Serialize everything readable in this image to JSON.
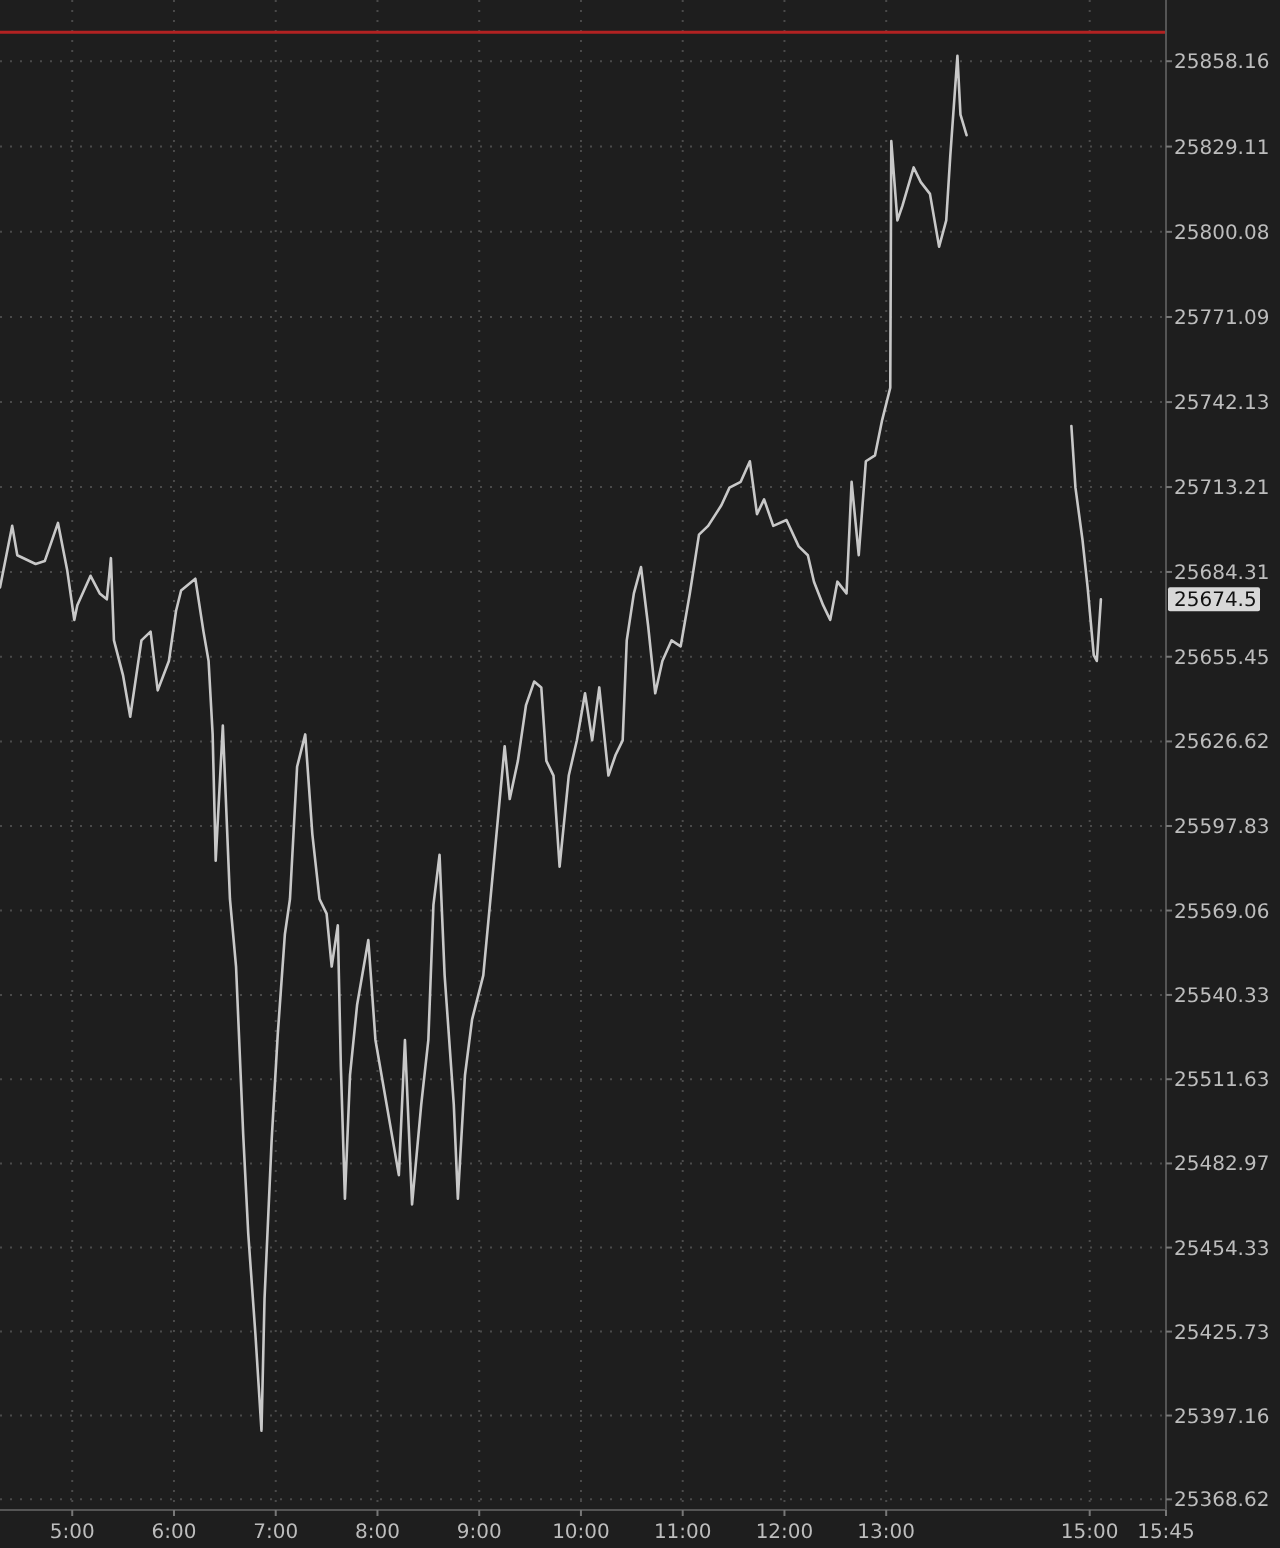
{
  "chart_data": {
    "type": "line",
    "x": [
      4.29,
      4.41,
      4.46,
      4.64,
      4.73,
      4.86,
      4.95,
      5.02,
      5.05,
      5.18,
      5.27,
      5.34,
      5.38,
      5.41,
      5.5,
      5.57,
      5.68,
      5.77,
      5.84,
      5.95,
      6.02,
      6.07,
      6.21,
      6.29,
      6.34,
      6.38,
      6.41,
      6.48,
      6.55,
      6.61,
      6.68,
      6.73,
      6.8,
      6.86,
      6.89,
      6.96,
      7.02,
      7.09,
      7.14,
      7.21,
      7.29,
      7.36,
      7.43,
      7.5,
      7.55,
      7.61,
      7.64,
      7.68,
      7.73,
      7.8,
      7.91,
      7.98,
      8.09,
      8.21,
      8.27,
      8.34,
      8.43,
      8.5,
      8.55,
      8.61,
      8.66,
      8.75,
      8.79,
      8.86,
      8.93,
      9.04,
      9.14,
      9.25,
      9.3,
      9.38,
      9.46,
      9.54,
      9.61,
      9.66,
      9.73,
      9.79,
      9.88,
      9.96,
      10.04,
      10.11,
      10.18,
      10.27,
      10.34,
      10.41,
      10.45,
      10.52,
      10.59,
      10.66,
      10.73,
      10.8,
      10.89,
      10.98,
      11.07,
      11.16,
      11.25,
      11.38,
      11.46,
      11.57,
      11.66,
      11.73,
      11.8,
      11.89,
      12.02,
      12.14,
      12.23,
      12.29,
      12.38,
      12.45,
      12.52,
      12.61,
      12.66,
      12.73,
      12.8,
      12.89,
      12.96,
      13.04,
      13.05,
      13.11,
      13.16,
      13.27,
      13.34,
      13.43,
      13.52,
      13.59,
      13.63,
      13.7,
      13.73,
      13.79,
      14.3,
      14.82,
      14.86,
      14.93,
      14.98,
      15.04,
      15.07,
      15.11
    ],
    "series": [
      {
        "color": "#c8c8c8",
        "values": [
          25679,
          25700,
          25690,
          25687,
          25688,
          25701,
          25685,
          25668,
          25673,
          25683,
          25677,
          25675,
          25689,
          25661,
          25649,
          25635,
          25661,
          25664,
          25644,
          25654,
          25671,
          25678,
          25682,
          25664,
          25654,
          25629,
          25586,
          25632,
          25573,
          25550,
          25493,
          25459,
          25425,
          25392,
          25437,
          25491,
          25527,
          25561,
          25573,
          25618,
          25629,
          25595,
          25573,
          25568,
          25550,
          25564,
          25516,
          25471,
          25513,
          25537,
          25559,
          25525,
          25503,
          25479,
          25525,
          25469,
          25503,
          25525,
          25571,
          25588,
          25547,
          25503,
          25471,
          25513,
          25532,
          25547,
          25584,
          25625,
          25607,
          25620,
          25639,
          25647,
          25645,
          25620,
          25615,
          25584,
          25615,
          25627,
          25643,
          25627,
          25645,
          25615,
          25622,
          25627,
          25661,
          25677,
          25686,
          25666,
          25643,
          25654,
          25661,
          25659,
          25677,
          25697,
          25700,
          25707,
          25713,
          25715,
          25722,
          25704,
          25709,
          25700,
          25702,
          25693,
          25690,
          25681,
          25673,
          25668,
          25681,
          25677,
          25715,
          25690,
          25722,
          25724,
          25736,
          25747,
          25831,
          25804,
          25809,
          25822,
          25817,
          25813,
          25795,
          25804,
          25826,
          25860,
          25840,
          25833,
          null,
          25734,
          25713,
          25695,
          25679,
          25656,
          25654,
          25675
        ]
      }
    ],
    "xlim": [
      4.29,
      15.75
    ],
    "xticks": [
      {
        "value": 5,
        "label": "5:00"
      },
      {
        "value": 6,
        "label": "6:00"
      },
      {
        "value": 7,
        "label": "7:00"
      },
      {
        "value": 8,
        "label": "8:00"
      },
      {
        "value": 9,
        "label": "9:00"
      },
      {
        "value": 10,
        "label": "10:00"
      },
      {
        "value": 11,
        "label": "11:00"
      },
      {
        "value": 12,
        "label": "12:00"
      },
      {
        "value": 13,
        "label": "13:00"
      },
      {
        "value": 15,
        "label": "15:00"
      },
      {
        "value": 15.75,
        "label": "15:45"
      }
    ],
    "ylim": [
      25365,
      25879
    ],
    "yticks": [
      25858.16,
      25829.11,
      25800.08,
      25771.09,
      25742.13,
      25713.21,
      25684.31,
      25655.45,
      25626.62,
      25597.83,
      25569.06,
      25540.33,
      25511.63,
      25482.97,
      25454.33,
      25425.73,
      25397.16,
      25368.62
    ],
    "grid": true,
    "ref_lines": [
      {
        "axis": "y",
        "value": 25868,
        "color": "#b22222"
      }
    ],
    "annotations": [
      "25674.5"
    ]
  }
}
